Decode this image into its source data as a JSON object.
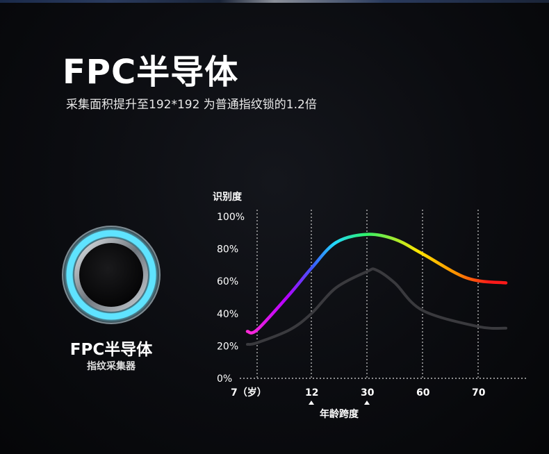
{
  "header": {
    "title": "FPC半导体",
    "subtitle": "采集面积提升至192*192 为普通指纹锁的1.2倍"
  },
  "sensor": {
    "title": "FPC半导体",
    "subtitle": "指纹采集器"
  },
  "colors": {
    "ring_glow": "#5fe3ff",
    "rainbow": [
      "#ff2bd6",
      "#b400ff",
      "#3a5bff",
      "#22d9ff",
      "#2ef06a",
      "#ffe600",
      "#ff8c00",
      "#ff1a1a"
    ],
    "gray_series": "#3a3a3e",
    "axis": "#e0e0e0"
  },
  "chart_data": {
    "type": "line",
    "ylabel": "识别度",
    "xlabel": "年龄跨度",
    "x_ticks": [
      "7（岁）",
      "12",
      "30",
      "60",
      "70"
    ],
    "y_ticks": [
      "0%",
      "20%",
      "40%",
      "60%",
      "80%",
      "100%"
    ],
    "ylim": [
      0,
      100
    ],
    "grid": "vertical dotted",
    "markers_under": [
      "12",
      "30"
    ],
    "series": [
      {
        "style": "rainbow",
        "x": [
          5,
          7,
          10,
          12,
          20,
          30,
          45,
          60,
          68,
          75
        ],
        "values": [
          29,
          30,
          52,
          68,
          84,
          89,
          86,
          77,
          62,
          59
        ]
      },
      {
        "style": "gray",
        "x": [
          5,
          7,
          10,
          12,
          20,
          30,
          35,
          45,
          60,
          70,
          75
        ],
        "values": [
          21,
          22,
          30,
          40,
          56,
          66,
          67,
          59,
          42,
          32,
          31
        ]
      }
    ]
  }
}
